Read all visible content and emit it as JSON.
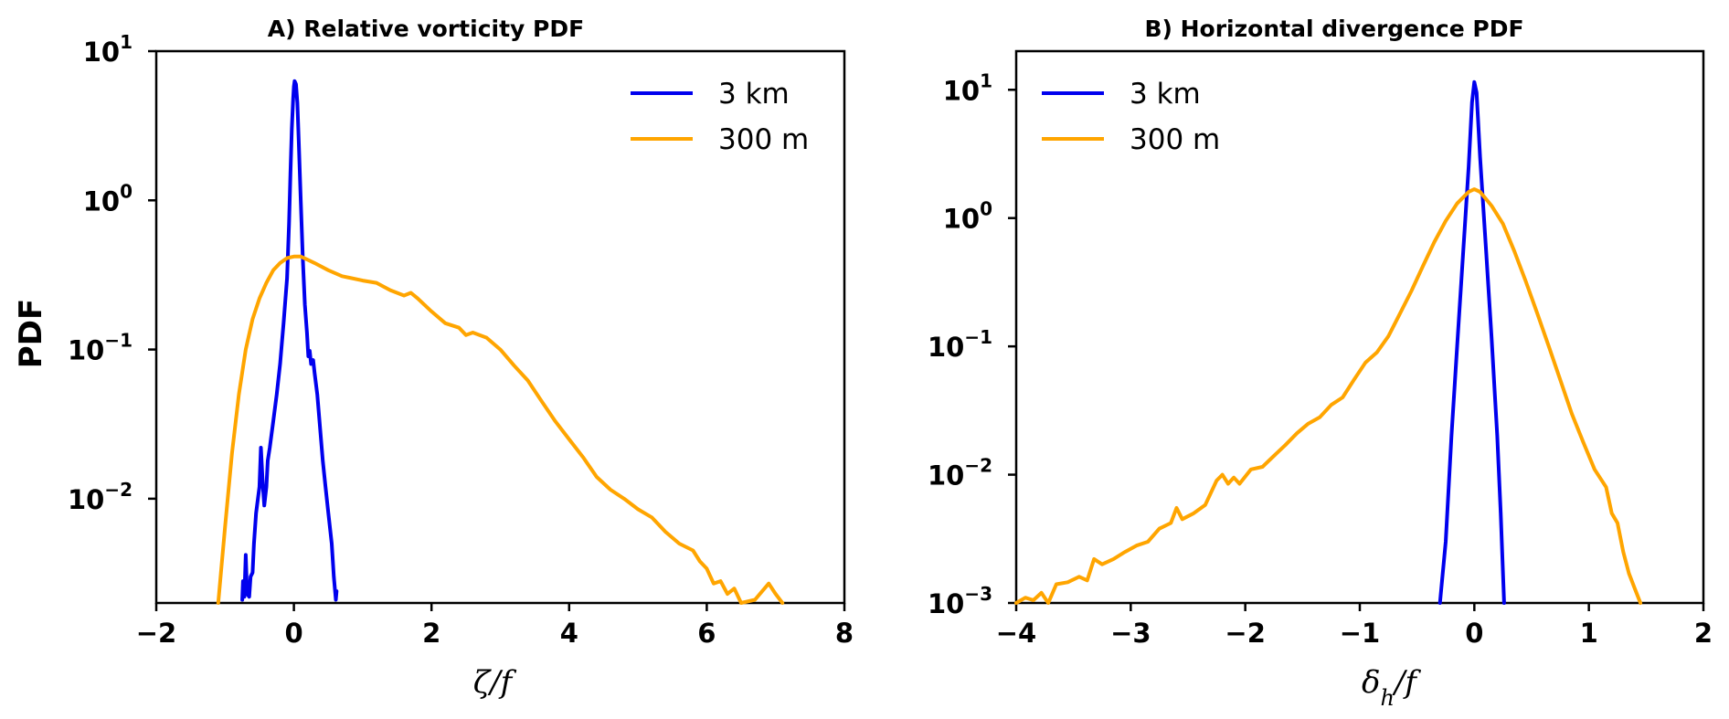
{
  "chart_data": [
    {
      "type": "line",
      "title": "A) Relative vorticity PDF",
      "ylabel": "PDF",
      "xlabel_main": "ζ",
      "xlabel_sub": "",
      "xlabel_tail": "/f",
      "xlim": [
        -2,
        8
      ],
      "yscale": "log",
      "ylim": [
        0.002,
        10
      ],
      "xticks": [
        "−2",
        "0",
        "2",
        "4",
        "6",
        "8"
      ],
      "xtick_values": [
        -2,
        0,
        2,
        4,
        6,
        8
      ],
      "yticks": [
        {
          "base": "10",
          "exp": "1",
          "value": 10
        },
        {
          "base": "10",
          "exp": "0",
          "value": 1
        },
        {
          "base": "10",
          "exp": "−1",
          "value": 0.1
        },
        {
          "base": "10",
          "exp": "−2",
          "value": 0.01
        }
      ],
      "legend_position": "top-right",
      "series": [
        {
          "name": "3 km",
          "color": "#0000ee",
          "points": [
            [
              -0.75,
              0.0021
            ],
            [
              -0.74,
              0.0028
            ],
            [
              -0.72,
              0.0022
            ],
            [
              -0.7,
              0.0042
            ],
            [
              -0.68,
              0.0023
            ],
            [
              -0.65,
              0.0022
            ],
            [
              -0.63,
              0.003
            ],
            [
              -0.6,
              0.0032
            ],
            [
              -0.58,
              0.005
            ],
            [
              -0.55,
              0.008
            ],
            [
              -0.5,
              0.012
            ],
            [
              -0.48,
              0.022
            ],
            [
              -0.45,
              0.012
            ],
            [
              -0.43,
              0.009
            ],
            [
              -0.4,
              0.012
            ],
            [
              -0.38,
              0.018
            ],
            [
              -0.35,
              0.022
            ],
            [
              -0.3,
              0.033
            ],
            [
              -0.25,
              0.05
            ],
            [
              -0.2,
              0.08
            ],
            [
              -0.15,
              0.15
            ],
            [
              -0.1,
              0.3
            ],
            [
              -0.07,
              0.7
            ],
            [
              -0.05,
              1.5
            ],
            [
              -0.03,
              3.0
            ],
            [
              -0.01,
              4.8
            ],
            [
              0.0,
              5.8
            ],
            [
              0.01,
              6.3
            ],
            [
              0.03,
              6.0
            ],
            [
              0.05,
              4.5
            ],
            [
              0.07,
              2.5
            ],
            [
              0.1,
              1.0
            ],
            [
              0.13,
              0.4
            ],
            [
              0.16,
              0.2
            ],
            [
              0.19,
              0.13
            ],
            [
              0.21,
              0.09
            ],
            [
              0.23,
              0.098
            ],
            [
              0.25,
              0.08
            ],
            [
              0.28,
              0.085
            ],
            [
              0.3,
              0.07
            ],
            [
              0.34,
              0.05
            ],
            [
              0.38,
              0.03
            ],
            [
              0.42,
              0.018
            ],
            [
              0.46,
              0.012
            ],
            [
              0.5,
              0.008
            ],
            [
              0.55,
              0.005
            ],
            [
              0.58,
              0.003
            ],
            [
              0.61,
              0.0021
            ],
            [
              0.62,
              0.0024
            ]
          ]
        },
        {
          "name": "300 m",
          "color": "#ffa500",
          "points": [
            [
              -1.1,
              0.002
            ],
            [
              -1.0,
              0.0065
            ],
            [
              -0.9,
              0.02
            ],
            [
              -0.8,
              0.05
            ],
            [
              -0.7,
              0.1
            ],
            [
              -0.6,
              0.16
            ],
            [
              -0.5,
              0.22
            ],
            [
              -0.4,
              0.28
            ],
            [
              -0.3,
              0.34
            ],
            [
              -0.2,
              0.38
            ],
            [
              -0.1,
              0.41
            ],
            [
              0.0,
              0.42
            ],
            [
              0.1,
              0.42
            ],
            [
              0.2,
              0.4
            ],
            [
              0.3,
              0.38
            ],
            [
              0.5,
              0.34
            ],
            [
              0.7,
              0.31
            ],
            [
              1.0,
              0.29
            ],
            [
              1.2,
              0.28
            ],
            [
              1.4,
              0.25
            ],
            [
              1.6,
              0.23
            ],
            [
              1.7,
              0.24
            ],
            [
              1.8,
              0.22
            ],
            [
              2.0,
              0.18
            ],
            [
              2.2,
              0.15
            ],
            [
              2.4,
              0.14
            ],
            [
              2.5,
              0.125
            ],
            [
              2.6,
              0.13
            ],
            [
              2.8,
              0.12
            ],
            [
              3.0,
              0.1
            ],
            [
              3.2,
              0.078
            ],
            [
              3.4,
              0.062
            ],
            [
              3.6,
              0.045
            ],
            [
              3.8,
              0.033
            ],
            [
              4.0,
              0.025
            ],
            [
              4.2,
              0.019
            ],
            [
              4.4,
              0.014
            ],
            [
              4.6,
              0.0115
            ],
            [
              4.8,
              0.01
            ],
            [
              5.0,
              0.0085
            ],
            [
              5.2,
              0.0075
            ],
            [
              5.4,
              0.006
            ],
            [
              5.6,
              0.005
            ],
            [
              5.8,
              0.0045
            ],
            [
              5.9,
              0.0038
            ],
            [
              6.0,
              0.0034
            ],
            [
              6.1,
              0.0027
            ],
            [
              6.2,
              0.0028
            ],
            [
              6.3,
              0.0023
            ],
            [
              6.4,
              0.0025
            ],
            [
              6.5,
              0.002
            ],
            [
              6.7,
              0.0021
            ],
            [
              6.9,
              0.0027
            ],
            [
              7.0,
              0.0023
            ],
            [
              7.1,
              0.002
            ]
          ]
        }
      ]
    },
    {
      "type": "line",
      "title": "B) Horizontal divergence PDF",
      "ylabel": "",
      "xlabel_main": "δ",
      "xlabel_sub": "h",
      "xlabel_tail": "/f",
      "xlim": [
        -4,
        2
      ],
      "yscale": "log",
      "ylim": [
        0.001,
        20
      ],
      "xticks": [
        "−4",
        "−3",
        "−2",
        "−1",
        "0",
        "1",
        "2"
      ],
      "xtick_values": [
        -4,
        -3,
        -2,
        -1,
        0,
        1,
        2
      ],
      "yticks": [
        {
          "base": "10",
          "exp": "1",
          "value": 10
        },
        {
          "base": "10",
          "exp": "0",
          "value": 1
        },
        {
          "base": "10",
          "exp": "−1",
          "value": 0.1
        },
        {
          "base": "10",
          "exp": "−2",
          "value": 0.01
        },
        {
          "base": "10",
          "exp": "−3",
          "value": 0.001
        }
      ],
      "legend_position": "top-left",
      "series": [
        {
          "name": "3 km",
          "color": "#0000ee",
          "points": [
            [
              -0.3,
              0.001
            ],
            [
              -0.25,
              0.003
            ],
            [
              -0.2,
              0.02
            ],
            [
              -0.15,
              0.1
            ],
            [
              -0.1,
              0.5
            ],
            [
              -0.05,
              2.5
            ],
            [
              -0.02,
              8.0
            ],
            [
              0.0,
              11.5
            ],
            [
              0.02,
              9.5
            ],
            [
              0.05,
              3.0
            ],
            [
              0.1,
              0.6
            ],
            [
              0.15,
              0.12
            ],
            [
              0.2,
              0.02
            ],
            [
              0.23,
              0.005
            ],
            [
              0.26,
              0.001
            ]
          ]
        },
        {
          "name": "300 m",
          "color": "#ffa500",
          "points": [
            [
              -4.0,
              0.001
            ],
            [
              -3.92,
              0.0011
            ],
            [
              -3.85,
              0.00105
            ],
            [
              -3.78,
              0.0012
            ],
            [
              -3.72,
              0.001
            ],
            [
              -3.65,
              0.0014
            ],
            [
              -3.55,
              0.00145
            ],
            [
              -3.45,
              0.0016
            ],
            [
              -3.38,
              0.0015
            ],
            [
              -3.32,
              0.0022
            ],
            [
              -3.25,
              0.002
            ],
            [
              -3.15,
              0.0022
            ],
            [
              -3.05,
              0.0025
            ],
            [
              -2.95,
              0.0028
            ],
            [
              -2.85,
              0.003
            ],
            [
              -2.75,
              0.0038
            ],
            [
              -2.65,
              0.0042
            ],
            [
              -2.6,
              0.0055
            ],
            [
              -2.55,
              0.0045
            ],
            [
              -2.45,
              0.005
            ],
            [
              -2.35,
              0.0058
            ],
            [
              -2.25,
              0.009
            ],
            [
              -2.2,
              0.01
            ],
            [
              -2.15,
              0.0085
            ],
            [
              -2.1,
              0.0095
            ],
            [
              -2.05,
              0.0085
            ],
            [
              -1.95,
              0.011
            ],
            [
              -1.85,
              0.0115
            ],
            [
              -1.75,
              0.014
            ],
            [
              -1.65,
              0.017
            ],
            [
              -1.55,
              0.021
            ],
            [
              -1.45,
              0.025
            ],
            [
              -1.35,
              0.028
            ],
            [
              -1.25,
              0.035
            ],
            [
              -1.15,
              0.04
            ],
            [
              -1.05,
              0.055
            ],
            [
              -0.95,
              0.075
            ],
            [
              -0.85,
              0.09
            ],
            [
              -0.75,
              0.12
            ],
            [
              -0.65,
              0.18
            ],
            [
              -0.55,
              0.27
            ],
            [
              -0.45,
              0.42
            ],
            [
              -0.35,
              0.65
            ],
            [
              -0.25,
              0.95
            ],
            [
              -0.15,
              1.3
            ],
            [
              -0.05,
              1.6
            ],
            [
              0.0,
              1.68
            ],
            [
              0.05,
              1.6
            ],
            [
              0.15,
              1.25
            ],
            [
              0.25,
              0.9
            ],
            [
              0.35,
              0.55
            ],
            [
              0.45,
              0.32
            ],
            [
              0.55,
              0.18
            ],
            [
              0.65,
              0.1
            ],
            [
              0.75,
              0.055
            ],
            [
              0.85,
              0.03
            ],
            [
              0.95,
              0.018
            ],
            [
              1.05,
              0.011
            ],
            [
              1.15,
              0.008
            ],
            [
              1.2,
              0.005
            ],
            [
              1.25,
              0.0042
            ],
            [
              1.3,
              0.0025
            ],
            [
              1.35,
              0.0017
            ],
            [
              1.4,
              0.0013
            ],
            [
              1.45,
              0.001
            ]
          ]
        }
      ]
    }
  ]
}
